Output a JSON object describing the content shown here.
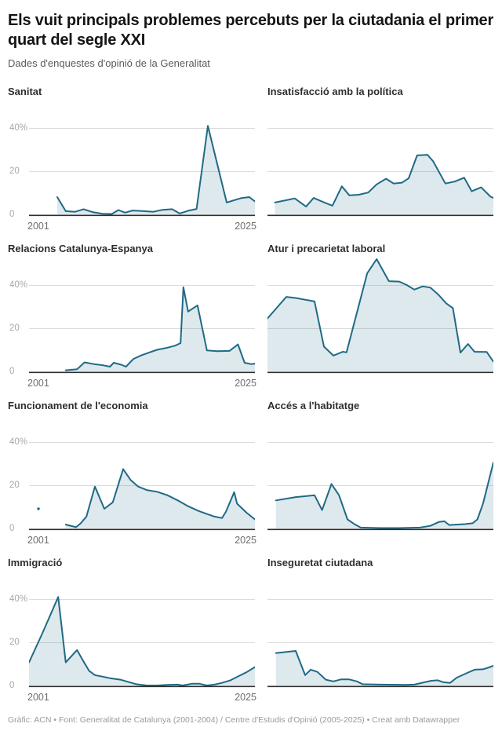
{
  "header": {
    "title": "Els vuit principals problemes percebuts per la ciutadania el primer quart del segle XXI",
    "subtitle": "Dades d'enquestes d'opinió de la Generalitat"
  },
  "axis": {
    "y_tick_labels": [
      "40%",
      "20",
      "0"
    ],
    "y_tick_values": [
      40,
      20,
      0
    ],
    "gridline_values": [
      40,
      20
    ],
    "x_start_label": "2001",
    "x_end_label": "2025",
    "x_range": [
      2001,
      2025
    ],
    "y_unit": "%"
  },
  "colors": {
    "line": "#1f6a85",
    "fill": "rgba(31,106,133,0.15)",
    "grid": "#dcdcdc",
    "baseline": "#2e2e2e",
    "y_label": "#a8a8a8",
    "x_label": "#6e6e6e"
  },
  "chart_data": [
    {
      "type": "area",
      "id": "sanitat",
      "title": "Sanitat",
      "show_y_labels": true,
      "show_x_labels": true,
      "points": [
        [
          2004,
          8
        ],
        [
          2004.9,
          1.5
        ],
        [
          2005.9,
          1.2
        ],
        [
          2006.8,
          2.4
        ],
        [
          2007.8,
          1
        ],
        [
          2008.8,
          0.3
        ],
        [
          2009.8,
          0.2
        ],
        [
          2010.5,
          2
        ],
        [
          2011.2,
          0.8
        ],
        [
          2012,
          1.8
        ],
        [
          2013.2,
          1.5
        ],
        [
          2014.2,
          1.2
        ],
        [
          2015.2,
          2.1
        ],
        [
          2016.2,
          2.4
        ],
        [
          2017,
          0.4
        ],
        [
          2018,
          1.8
        ],
        [
          2018.8,
          2.5
        ],
        [
          2020,
          41
        ],
        [
          2022,
          5.5
        ],
        [
          2023.5,
          7.5
        ],
        [
          2024.4,
          8
        ],
        [
          2025,
          6
        ]
      ]
    },
    {
      "type": "area",
      "id": "insatisfaccio-politica",
      "title": "Insatisfacció amb la política",
      "show_y_labels": false,
      "show_x_labels": false,
      "points": [
        [
          2001.8,
          5.5
        ],
        [
          2003.9,
          7.4
        ],
        [
          2005.1,
          3.6
        ],
        [
          2005.9,
          7.6
        ],
        [
          2007.2,
          5.2
        ],
        [
          2007.9,
          4
        ],
        [
          2008.9,
          13
        ],
        [
          2009.7,
          8.8
        ],
        [
          2010.7,
          9.1
        ],
        [
          2011.7,
          10.1
        ],
        [
          2012.6,
          13.9
        ],
        [
          2013.6,
          16.5
        ],
        [
          2014.4,
          14.3
        ],
        [
          2015.3,
          14.7
        ],
        [
          2016,
          16.7
        ],
        [
          2016.9,
          27.3
        ],
        [
          2018,
          27.6
        ],
        [
          2018.6,
          24.6
        ],
        [
          2019.9,
          14.3
        ],
        [
          2020.9,
          15.2
        ],
        [
          2021.9,
          17
        ],
        [
          2022.7,
          10.7
        ],
        [
          2023.7,
          12.5
        ],
        [
          2024.7,
          8.2
        ],
        [
          2025,
          7.6
        ]
      ]
    },
    {
      "type": "area",
      "id": "relacions-catalunya-espanya",
      "title": "Relacions Catalunya-Espanya",
      "show_y_labels": true,
      "show_x_labels": true,
      "points": [
        [
          2004.9,
          0.5
        ],
        [
          2006.1,
          1
        ],
        [
          2006.9,
          4.2
        ],
        [
          2007.9,
          3.4
        ],
        [
          2008.9,
          2.8
        ],
        [
          2009.6,
          2.2
        ],
        [
          2010,
          4
        ],
        [
          2010.8,
          3.1
        ],
        [
          2011.3,
          2.2
        ],
        [
          2012.1,
          5.8
        ],
        [
          2012.9,
          7.4
        ],
        [
          2013.8,
          8.8
        ],
        [
          2014.6,
          10
        ],
        [
          2015.7,
          11
        ],
        [
          2016.5,
          11.9
        ],
        [
          2017.1,
          13.1
        ],
        [
          2017.4,
          39
        ],
        [
          2017.9,
          27.7
        ],
        [
          2018.9,
          30.6
        ],
        [
          2019.9,
          9.7
        ],
        [
          2021,
          9.4
        ],
        [
          2022.3,
          9.5
        ],
        [
          2023.2,
          12.5
        ],
        [
          2023.9,
          4
        ],
        [
          2024.6,
          3.4
        ],
        [
          2025,
          3.6
        ]
      ]
    },
    {
      "type": "area",
      "id": "atur-precarietat-laboral",
      "title": "Atur i precarietat laboral",
      "show_y_labels": false,
      "show_x_labels": false,
      "points": [
        [
          2001,
          24.5
        ],
        [
          2003,
          34.5
        ],
        [
          2004,
          34
        ],
        [
          2006,
          32.4
        ],
        [
          2007,
          11.5
        ],
        [
          2008,
          7.3
        ],
        [
          2009,
          9.1
        ],
        [
          2009.4,
          8.8
        ],
        [
          2011.6,
          45.5
        ],
        [
          2012.6,
          52
        ],
        [
          2013.9,
          41.8
        ],
        [
          2015,
          41.6
        ],
        [
          2015.8,
          40
        ],
        [
          2016.6,
          37.9
        ],
        [
          2017.5,
          39.4
        ],
        [
          2018.3,
          38.8
        ],
        [
          2019.1,
          35.8
        ],
        [
          2020,
          31.5
        ],
        [
          2020.7,
          29.3
        ],
        [
          2021.5,
          8.7
        ],
        [
          2022.3,
          12.7
        ],
        [
          2023,
          9.1
        ],
        [
          2024.3,
          9
        ],
        [
          2025,
          4.5
        ]
      ]
    },
    {
      "type": "area",
      "id": "funcionament-economia",
      "title": "Funcionament de l'economia",
      "show_y_labels": true,
      "show_x_labels": true,
      "isolated_points": [
        [
          2002,
          9.1
        ]
      ],
      "points": [
        [
          2004.9,
          1.8
        ],
        [
          2006,
          0.6
        ],
        [
          2006.5,
          2.4
        ],
        [
          2007.1,
          5.5
        ],
        [
          2008,
          19.4
        ],
        [
          2009,
          9.1
        ],
        [
          2009.9,
          12.1
        ],
        [
          2011,
          27.5
        ],
        [
          2011.8,
          22.4
        ],
        [
          2012.6,
          19.4
        ],
        [
          2013.5,
          17.8
        ],
        [
          2014.6,
          17
        ],
        [
          2015.7,
          15.4
        ],
        [
          2016.8,
          13
        ],
        [
          2017.9,
          10.3
        ],
        [
          2019,
          8.1
        ],
        [
          2019.9,
          6.7
        ],
        [
          2020.7,
          5.5
        ],
        [
          2021.5,
          4.8
        ],
        [
          2021.9,
          7.6
        ],
        [
          2022.8,
          16.8
        ],
        [
          2023.1,
          11.5
        ],
        [
          2024.1,
          7.3
        ],
        [
          2025,
          4.2
        ]
      ]
    },
    {
      "type": "area",
      "id": "acces-habitatge",
      "title": "Accés a l'habitatge",
      "show_y_labels": false,
      "show_x_labels": false,
      "points": [
        [
          2001.9,
          13
        ],
        [
          2004,
          14.5
        ],
        [
          2006,
          15.4
        ],
        [
          2006.8,
          8.5
        ],
        [
          2007.8,
          20.6
        ],
        [
          2008.6,
          15.4
        ],
        [
          2009.5,
          4.2
        ],
        [
          2010.2,
          2.1
        ],
        [
          2010.9,
          0.4
        ],
        [
          2013,
          0.2
        ],
        [
          2015,
          0.2
        ],
        [
          2017.2,
          0.4
        ],
        [
          2018.3,
          1.2
        ],
        [
          2019.2,
          3
        ],
        [
          2019.8,
          3.3
        ],
        [
          2020.3,
          1.6
        ],
        [
          2021.1,
          1.8
        ],
        [
          2022,
          2
        ],
        [
          2022.8,
          2.4
        ],
        [
          2023.3,
          4.2
        ],
        [
          2023.9,
          11.5
        ],
        [
          2024.6,
          23.6
        ],
        [
          2025,
          30.5
        ]
      ]
    },
    {
      "type": "area",
      "id": "immigracio",
      "title": "Immigració",
      "show_y_labels": true,
      "show_x_labels": true,
      "points": [
        [
          2001,
          10.7
        ],
        [
          2002.4,
          24
        ],
        [
          2004.1,
          41
        ],
        [
          2004.9,
          10.7
        ],
        [
          2006.1,
          16.4
        ],
        [
          2006.9,
          10.3
        ],
        [
          2007.4,
          6.7
        ],
        [
          2008,
          4.8
        ],
        [
          2009.6,
          3.4
        ],
        [
          2010.7,
          2.7
        ],
        [
          2012.4,
          0.6
        ],
        [
          2013.5,
          0
        ],
        [
          2014.6,
          0
        ],
        [
          2015.7,
          0.3
        ],
        [
          2016.8,
          0.4
        ],
        [
          2017.3,
          0
        ],
        [
          2018.3,
          0.8
        ],
        [
          2019.1,
          0.8
        ],
        [
          2019.9,
          0
        ],
        [
          2020.7,
          0.4
        ],
        [
          2021.5,
          1.2
        ],
        [
          2022.4,
          2.4
        ],
        [
          2023.2,
          4.2
        ],
        [
          2024.1,
          6.1
        ],
        [
          2025,
          8.5
        ]
      ]
    },
    {
      "type": "area",
      "id": "inseguretat-ciutadana",
      "title": "Inseguretat ciutadana",
      "show_y_labels": false,
      "show_x_labels": false,
      "points": [
        [
          2001.9,
          15
        ],
        [
          2004,
          16
        ],
        [
          2005,
          4.8
        ],
        [
          2005.6,
          7.3
        ],
        [
          2006.3,
          6.3
        ],
        [
          2007.2,
          2.7
        ],
        [
          2008,
          1.9
        ],
        [
          2008.8,
          2.8
        ],
        [
          2009.7,
          2.8
        ],
        [
          2010.5,
          1.9
        ],
        [
          2011.1,
          0.6
        ],
        [
          2013,
          0.4
        ],
        [
          2015.5,
          0.3
        ],
        [
          2016.6,
          0.4
        ],
        [
          2017.8,
          1.6
        ],
        [
          2018.4,
          2.2
        ],
        [
          2019.1,
          2.4
        ],
        [
          2019.7,
          1.5
        ],
        [
          2020.4,
          1.2
        ],
        [
          2021.1,
          3.6
        ],
        [
          2022.2,
          5.8
        ],
        [
          2023,
          7.3
        ],
        [
          2023.9,
          7.5
        ],
        [
          2024.4,
          8.2
        ],
        [
          2025,
          9.1
        ]
      ]
    }
  ],
  "footer": {
    "text": "Gràfic: ACN • Font: Generalitat de Catalunya (2001-2004) / Centre d'Estudis d'Opinió (2005-2025) • Creat amb Datawrapper"
  }
}
